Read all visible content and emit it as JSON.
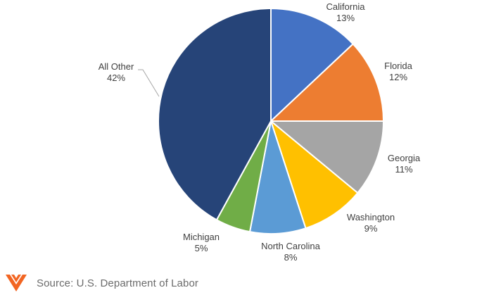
{
  "chart_data": {
    "type": "pie",
    "start_angle_deg": 0,
    "direction": "clockwise",
    "slices": [
      {
        "label": "California",
        "value": 13,
        "value_label": "13%",
        "color": "#4472c4"
      },
      {
        "label": "Florida",
        "value": 12,
        "value_label": "12%",
        "color": "#ed7d31"
      },
      {
        "label": "Georgia",
        "value": 11,
        "value_label": "11%",
        "color": "#a5a5a5"
      },
      {
        "label": "Washington",
        "value": 9,
        "value_label": "9%",
        "color": "#ffc000"
      },
      {
        "label": "North Carolina",
        "value": 8,
        "value_label": "8%",
        "color": "#5b9bd5"
      },
      {
        "label": "Michigan",
        "value": 5,
        "value_label": "5%",
        "color": "#70ad47"
      },
      {
        "label": "All Other",
        "value": 42,
        "value_label": "42%",
        "color": "#264478"
      }
    ]
  },
  "footer": {
    "source": "Source: U.S. Department of Labor",
    "logo_icon": "chevron-stripes-icon",
    "logo_color": "#f26522"
  }
}
